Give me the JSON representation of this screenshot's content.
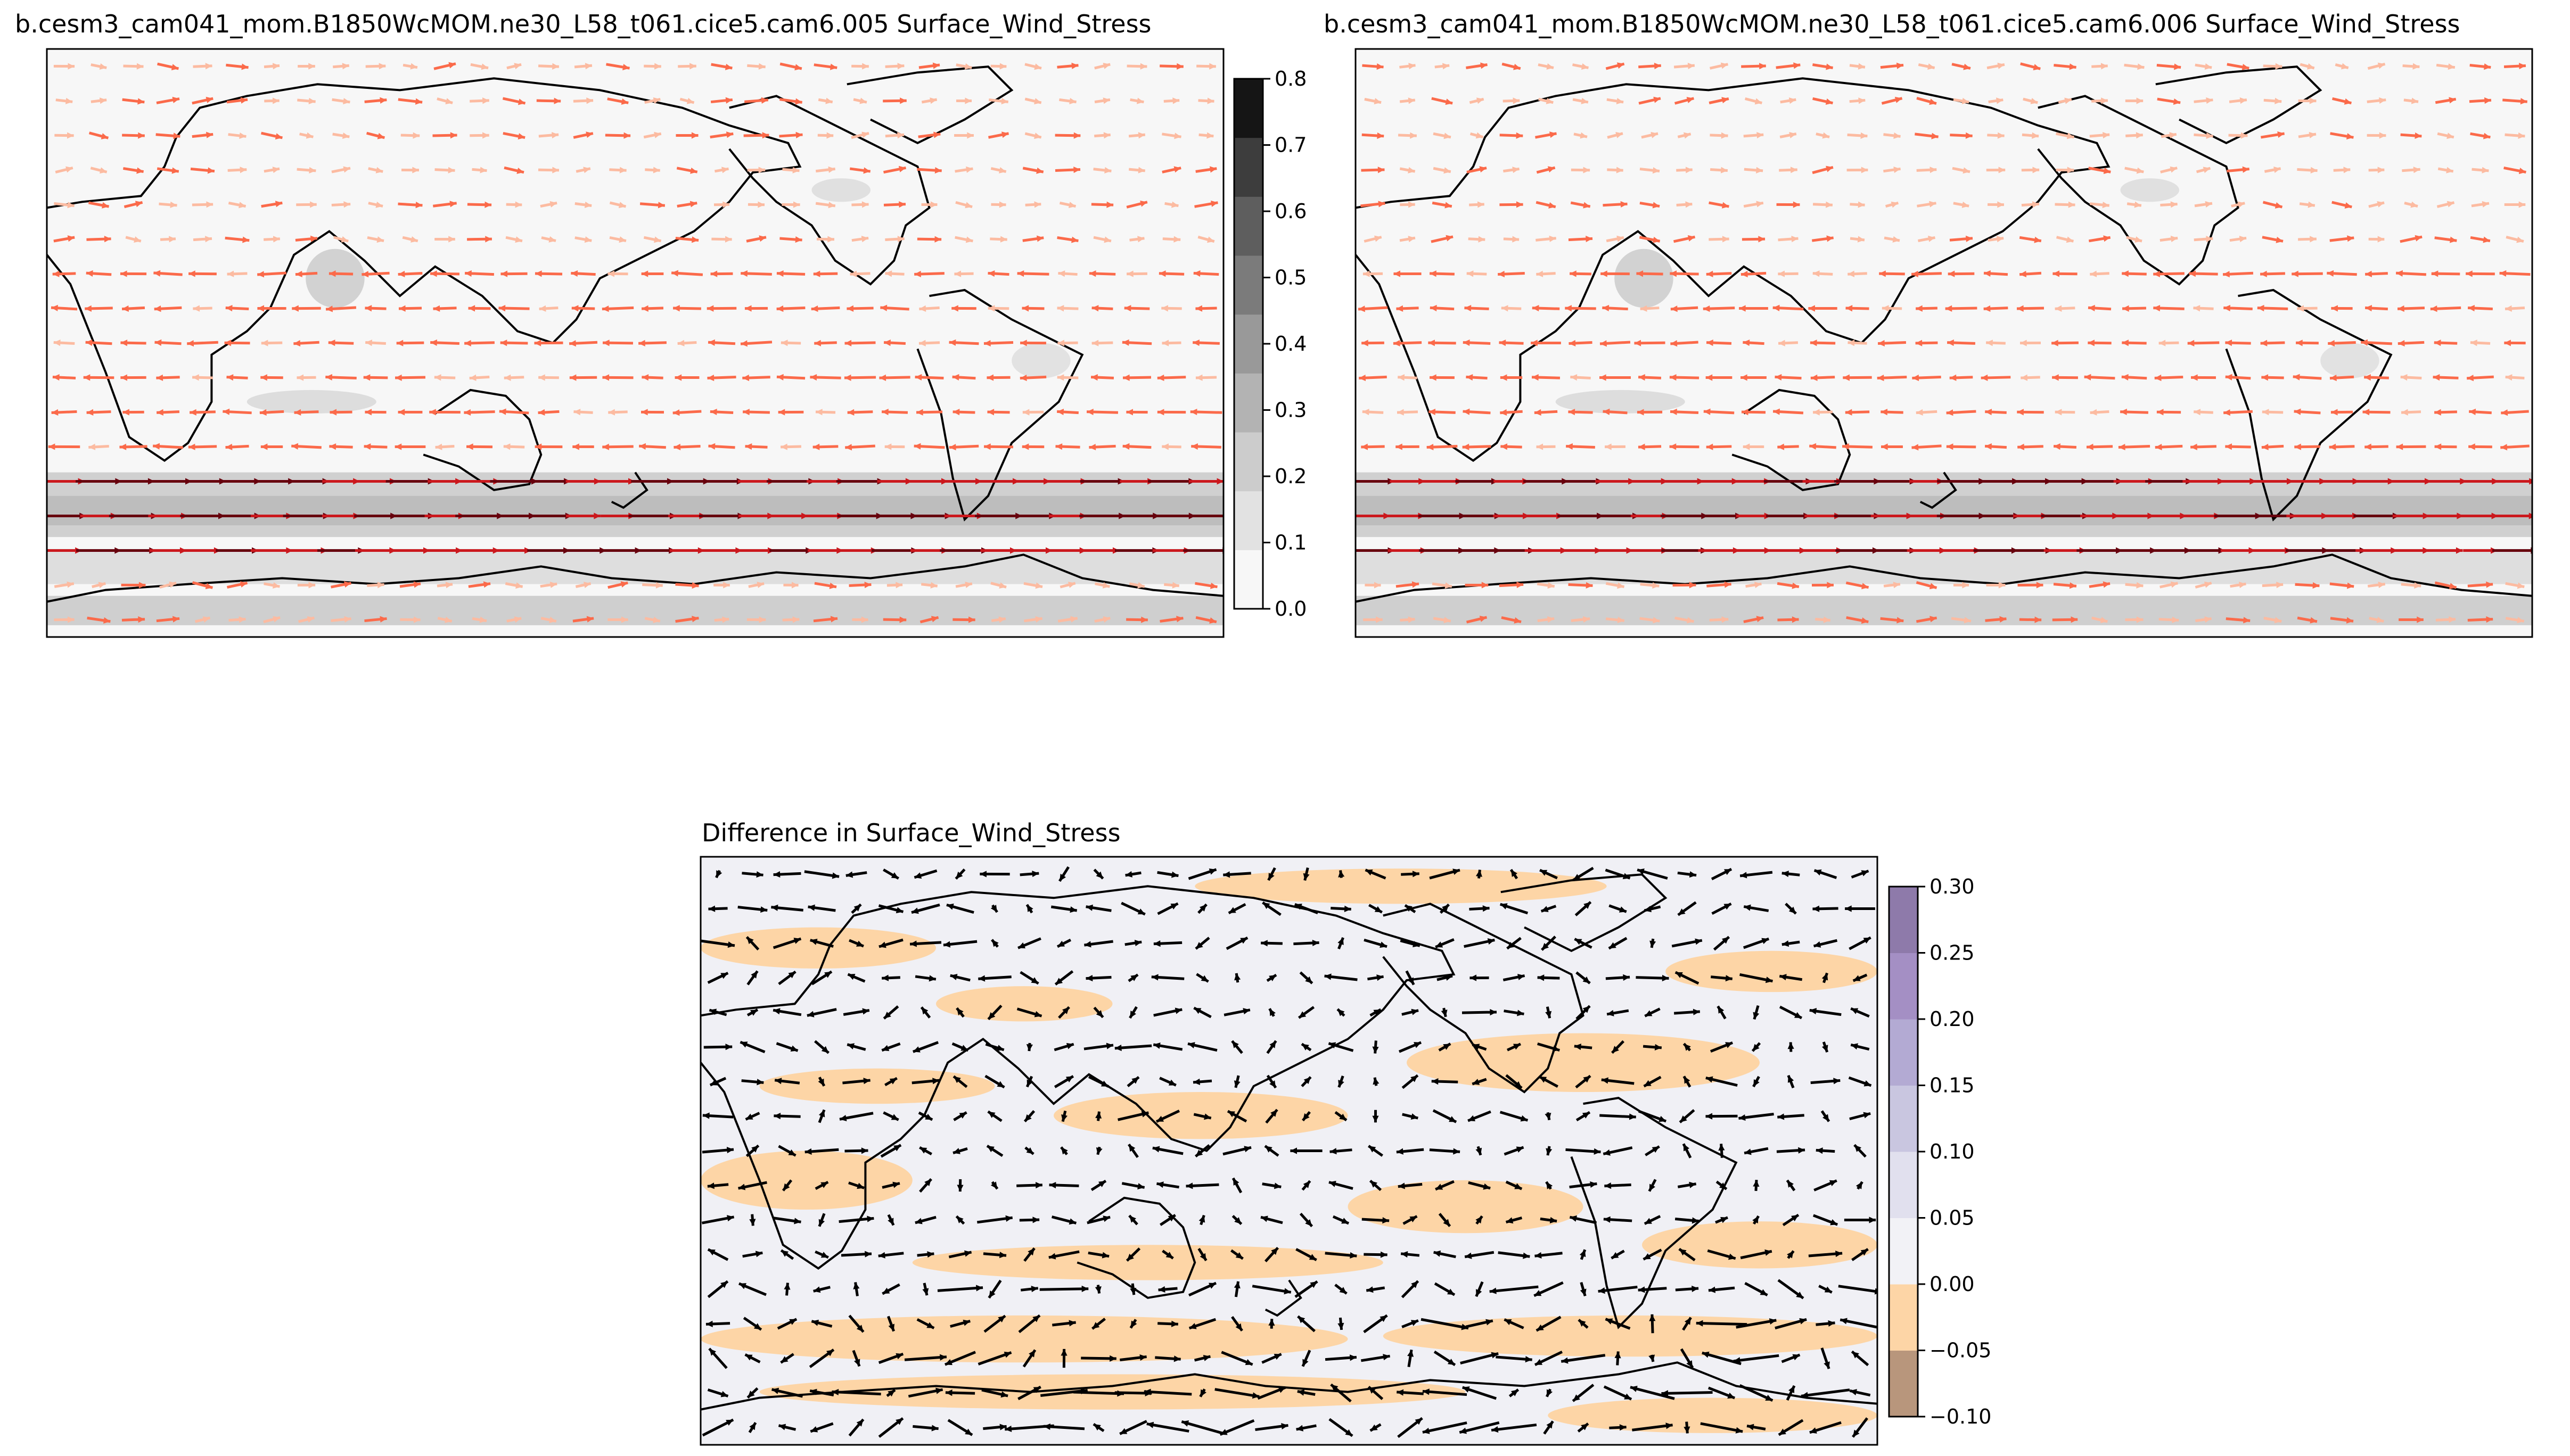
{
  "panels": [
    {
      "title": "b.cesm3_cam041_mom.B1850WcMOM.ne30_L58_t061.cice5.cam6.005 Surface_Wind_Stress",
      "fill_color": "#f7f7f7",
      "arrow_colors": [
        "#fcbba1",
        "#fb6a4a",
        "#cb181d",
        "#67000d"
      ]
    },
    {
      "title": "b.cesm3_cam041_mom.B1850WcMOM.ne30_L58_t061.cice5.cam6.006 Surface_Wind_Stress",
      "fill_color": "#f7f7f7",
      "arrow_colors": [
        "#fcbba1",
        "#fb6a4a",
        "#cb181d",
        "#67000d"
      ]
    },
    {
      "title": "Difference in Surface_Wind_Stress",
      "fill_color": "#f0f0f5",
      "arrow_colors": [
        "#000000"
      ]
    }
  ],
  "colorbar_top": {
    "ticks": [
      "0.0",
      "0.1",
      "0.2",
      "0.3",
      "0.4",
      "0.5",
      "0.6",
      "0.7",
      "0.8"
    ],
    "colors": [
      "#f7f7f7",
      "#e2e2e2",
      "#cccccc",
      "#b3b3b3",
      "#999999",
      "#7b7b7b",
      "#5e5e5e",
      "#3d3d3d",
      "#151515"
    ]
  },
  "colorbar_diff": {
    "ticks": [
      "−0.10",
      "−0.05",
      "0.00",
      "0.05",
      "0.10",
      "0.15",
      "0.20",
      "0.25",
      "0.30"
    ],
    "colors": [
      "#b8967c",
      "#fdd5a6",
      "#f2f2f6",
      "#e1e0ee",
      "#c9c6e0",
      "#b3aad3",
      "#a48fc4",
      "#8e7aaa"
    ]
  }
}
